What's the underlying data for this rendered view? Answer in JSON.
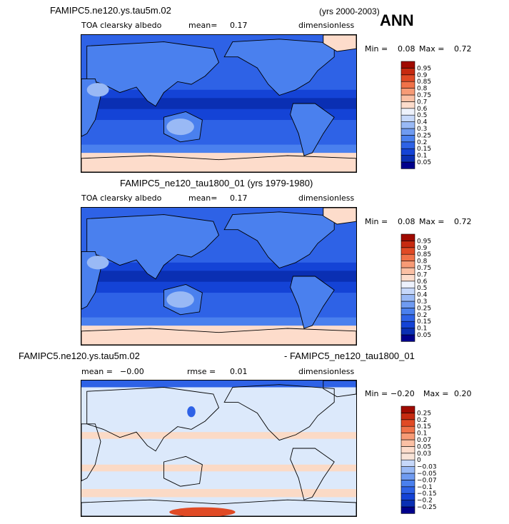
{
  "season": "ANN",
  "panels": [
    {
      "case_name": "FAMIPC5.ne120.ys.tau5m.02",
      "years": "(yrs 2000-2003)",
      "variable": "TOA clearsky albedo",
      "mean_label": "mean=",
      "mean_value": "0.17",
      "units": "dimensionless",
      "min_label": "Min =",
      "min_value": "0.08",
      "max_label": "Max =",
      "max_value": "0.72"
    },
    {
      "title": "FAMIPC5_ne120_tau1800_01 (yrs 1979-1980)",
      "variable": "TOA clearsky albedo",
      "mean_label": "mean=",
      "mean_value": "0.17",
      "units": "dimensionless",
      "min_label": "Min =",
      "min_value": "0.08",
      "max_label": "Max =",
      "max_value": "0.72"
    },
    {
      "case_a": "FAMIPC5.ne120.ys.tau5m.02",
      "case_b": "- FAMIPC5_ne120_tau1800_01",
      "mean_label": "mean =",
      "mean_value": "−0.00",
      "rmse_label": "rmse =",
      "rmse_value": "0.01",
      "units": "dimensionless",
      "min_label": "Min =",
      "min_value": "−0.20",
      "max_label": "Max =",
      "max_value": "0.20"
    }
  ],
  "chart_data": [
    {
      "type": "heatmap",
      "title": "TOA clearsky albedo",
      "subtitle": "FAMIPC5.ne120.ys.tau5m.02 (yrs 2000-2003) ANN",
      "units": "dimensionless",
      "mean": 0.17,
      "min": 0.08,
      "max": 0.72,
      "colorbar_levels": [
        0.05,
        0.1,
        0.15,
        0.2,
        0.25,
        0.3,
        0.4,
        0.5,
        0.6,
        0.7,
        0.75,
        0.8,
        0.85,
        0.9,
        0.95
      ],
      "colorbar_labels": [
        "0.05",
        "0.1",
        "0.15",
        "0.2",
        "0.25",
        "0.3",
        "0.4",
        "0.5",
        "0.6",
        "0.7",
        "0.75",
        "0.8",
        "0.85",
        "0.9",
        "0.95"
      ],
      "colorbar_colors": [
        "#00008b",
        "#0a2fb3",
        "#1443d6",
        "#2e62e6",
        "#4a80ee",
        "#6f9bf1",
        "#99b9f5",
        "#c6d8fa",
        "#eef2fc",
        "#fddccb",
        "#fbc0a4",
        "#f79b76",
        "#f07249",
        "#e04a25",
        "#c62a10",
        "#a00a00"
      ]
    },
    {
      "type": "heatmap",
      "title": "TOA clearsky albedo",
      "subtitle": "FAMIPC5_ne120_tau1800_01 (yrs 1979-1980)",
      "units": "dimensionless",
      "mean": 0.17,
      "min": 0.08,
      "max": 0.72,
      "colorbar_levels": [
        0.05,
        0.1,
        0.15,
        0.2,
        0.25,
        0.3,
        0.4,
        0.5,
        0.6,
        0.7,
        0.75,
        0.8,
        0.85,
        0.9,
        0.95
      ],
      "colorbar_labels": [
        "0.05",
        "0.1",
        "0.15",
        "0.2",
        "0.25",
        "0.3",
        "0.4",
        "0.5",
        "0.6",
        "0.7",
        "0.75",
        "0.8",
        "0.85",
        "0.9",
        "0.95"
      ],
      "colorbar_colors": [
        "#00008b",
        "#0a2fb3",
        "#1443d6",
        "#2e62e6",
        "#4a80ee",
        "#6f9bf1",
        "#99b9f5",
        "#c6d8fa",
        "#eef2fc",
        "#fddccb",
        "#fbc0a4",
        "#f79b76",
        "#f07249",
        "#e04a25",
        "#c62a10",
        "#a00a00"
      ]
    },
    {
      "type": "heatmap",
      "title": "FAMIPC5.ne120.ys.tau5m.02 - FAMIPC5_ne120_tau1800_01",
      "units": "dimensionless",
      "mean": -0.0,
      "rmse": 0.01,
      "min": -0.2,
      "max": 0.2,
      "colorbar_levels": [
        -0.25,
        -0.2,
        -0.15,
        -0.1,
        -0.07,
        -0.05,
        -0.03,
        0,
        0.03,
        0.05,
        0.07,
        0.1,
        0.15,
        0.2,
        0.25
      ],
      "colorbar_labels": [
        "−0.25",
        "−0.2",
        "−0.15",
        "−0.1",
        "−0.07",
        "−0.05",
        "−0.03",
        "0",
        "0.03",
        "0.05",
        "0.07",
        "0.1",
        "0.15",
        "0.2",
        "0.25"
      ],
      "colorbar_colors": [
        "#00008b",
        "#0a2fb3",
        "#1443d6",
        "#2e62e6",
        "#4a80ee",
        "#6f9bf1",
        "#99b9f5",
        "#c6d8fa",
        "#f8e4d8",
        "#fddccb",
        "#fbc0a4",
        "#f79b76",
        "#f07249",
        "#e04a25",
        "#c62a10",
        "#a00a00"
      ]
    }
  ],
  "map_colors": {
    "ocean_deep": "#0a2fb3",
    "ocean_tropics": "#1443d6",
    "ocean_mid": "#2e62e6",
    "land_dark": "#4a80ee",
    "land_light": "#99b9f5",
    "polar_light": "#eef2fc",
    "polar_warm": "#fddccb",
    "diff_neutral": "#dce9fb",
    "diff_pos": "#fbdac6",
    "diff_strong_pos": "#e04a25",
    "diff_neg": "#2e62e6"
  }
}
